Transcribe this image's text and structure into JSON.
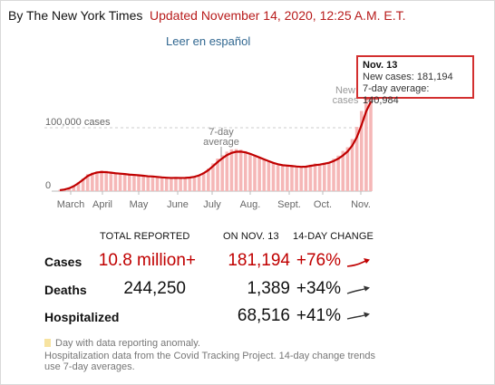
{
  "header": {
    "byline": "By The New York Times",
    "updated": "Updated November 14, 2020, 12:25 A.M. E.T.",
    "spanish_link": "Leer en español"
  },
  "chart_data": {
    "type": "bar",
    "metric_label": "cases",
    "y_gridline_label": "100,000 cases",
    "y_zero_label": "0",
    "ylim": [
      0,
      200000
    ],
    "x_labels": [
      "March",
      "April",
      "May",
      "June",
      "July",
      "Aug.",
      "Sept.",
      "Oct.",
      "Nov."
    ],
    "annotations": {
      "avg_label": "7-day\naverage",
      "new_label": "New\ncases"
    },
    "daily_cases": [
      2000,
      3200,
      5400,
      9100,
      14300,
      20100,
      26800,
      29100,
      31200,
      32500,
      31900,
      30800,
      29100,
      28700,
      27900,
      26300,
      26500,
      25500,
      24600,
      23600,
      24400,
      22200,
      21600,
      20700,
      20600,
      21200,
      19900,
      20600,
      21200,
      22900,
      25800,
      29800,
      35600,
      43800,
      51400,
      56600,
      62300,
      65900,
      66400,
      65500,
      63100,
      59600,
      56000,
      52700,
      49400,
      46300,
      43600,
      40700,
      39500,
      41600,
      39300,
      37300,
      37200,
      37800,
      41700,
      43800,
      42000,
      44600,
      45400,
      51100,
      56000,
      63500,
      69200,
      82200,
      101300,
      126400,
      162100,
      181194
    ],
    "seven_day_avg": [
      1500,
      2600,
      4500,
      7800,
      12500,
      18100,
      23800,
      27200,
      29400,
      30200,
      29900,
      29100,
      28200,
      27600,
      27000,
      26100,
      25600,
      25000,
      24300,
      23500,
      23100,
      22400,
      21700,
      21200,
      20800,
      20900,
      20800,
      20900,
      21400,
      22600,
      24800,
      28300,
      33100,
      39400,
      45900,
      51700,
      56800,
      60300,
      62100,
      62300,
      61200,
      58900,
      56100,
      53100,
      50200,
      47300,
      44600,
      42400,
      40900,
      40300,
      39600,
      38800,
      38300,
      38600,
      39800,
      41000,
      41900,
      43200,
      44700,
      47500,
      51200,
      56300,
      62600,
      71700,
      85100,
      104100,
      125600,
      140984
    ],
    "peak_point": {
      "date": "Nov. 13",
      "new_cases": 181194,
      "seven_day_avg": 140984
    }
  },
  "tooltip": {
    "date": "Nov. 13",
    "new_cases": "New cases: 181,194",
    "avg": "7-day average: 140,984"
  },
  "table": {
    "headers": {
      "total": "TOTAL REPORTED",
      "on_date": "ON NOV. 13",
      "change": "14-DAY CHANGE"
    },
    "rows": [
      {
        "label": "Cases",
        "total": "10.8 million+",
        "on_date": "181,194",
        "change": "+76%",
        "highlight": true
      },
      {
        "label": "Deaths",
        "total": "244,250",
        "on_date": "1,389",
        "change": "+34%",
        "highlight": false
      },
      {
        "label": "Hospitalized",
        "total": "",
        "on_date": "68,516",
        "change": "+41%",
        "highlight": false
      }
    ]
  },
  "footnotes": {
    "anomaly": "Day with data reporting anomaly.",
    "source": "Hospitalization data from the Covid Tracking Project. 14-day change trends use 7-day averages."
  },
  "colors": {
    "accent_red": "#c00000",
    "bar_fill": "#f5b7b7",
    "line_red": "#c00000",
    "anomaly": "#f7e3a0",
    "link": "#326891"
  }
}
